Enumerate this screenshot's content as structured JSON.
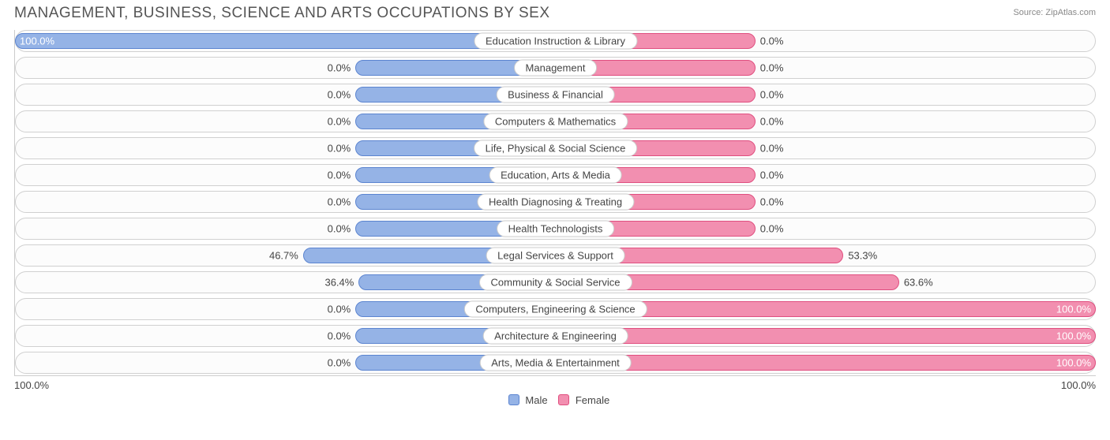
{
  "title": "MANAGEMENT, BUSINESS, SCIENCE AND ARTS OCCUPATIONS BY SEX",
  "source": "Source: ZipAtlas.com",
  "colors": {
    "male_fill": "#95b3e6",
    "male_border": "#5b84d0",
    "female_fill": "#f28fb0",
    "female_border": "#e04e7f",
    "text": "#444444",
    "row_border": "#d0d0d0",
    "row_bg": "#fcfcfc"
  },
  "legend": {
    "male": "Male",
    "female": "Female"
  },
  "axis": {
    "left": "100.0%",
    "right": "100.0%"
  },
  "neutral_bar_half_pct": 18.5,
  "rows": [
    {
      "label": "Education Instruction & Library",
      "male_pct": 100.0,
      "female_pct": 0.0,
      "male_label": "100.0%",
      "female_label": "0.0%"
    },
    {
      "label": "Management",
      "male_pct": 0.0,
      "female_pct": 0.0,
      "male_label": "0.0%",
      "female_label": "0.0%"
    },
    {
      "label": "Business & Financial",
      "male_pct": 0.0,
      "female_pct": 0.0,
      "male_label": "0.0%",
      "female_label": "0.0%"
    },
    {
      "label": "Computers & Mathematics",
      "male_pct": 0.0,
      "female_pct": 0.0,
      "male_label": "0.0%",
      "female_label": "0.0%"
    },
    {
      "label": "Life, Physical & Social Science",
      "male_pct": 0.0,
      "female_pct": 0.0,
      "male_label": "0.0%",
      "female_label": "0.0%"
    },
    {
      "label": "Education, Arts & Media",
      "male_pct": 0.0,
      "female_pct": 0.0,
      "male_label": "0.0%",
      "female_label": "0.0%"
    },
    {
      "label": "Health Diagnosing & Treating",
      "male_pct": 0.0,
      "female_pct": 0.0,
      "male_label": "0.0%",
      "female_label": "0.0%"
    },
    {
      "label": "Health Technologists",
      "male_pct": 0.0,
      "female_pct": 0.0,
      "male_label": "0.0%",
      "female_label": "0.0%"
    },
    {
      "label": "Legal Services & Support",
      "male_pct": 46.7,
      "female_pct": 53.3,
      "male_label": "46.7%",
      "female_label": "53.3%"
    },
    {
      "label": "Community & Social Service",
      "male_pct": 36.4,
      "female_pct": 63.6,
      "male_label": "36.4%",
      "female_label": "63.6%"
    },
    {
      "label": "Computers, Engineering & Science",
      "male_pct": 0.0,
      "female_pct": 100.0,
      "male_label": "0.0%",
      "female_label": "100.0%"
    },
    {
      "label": "Architecture & Engineering",
      "male_pct": 0.0,
      "female_pct": 100.0,
      "male_label": "0.0%",
      "female_label": "100.0%"
    },
    {
      "label": "Arts, Media & Entertainment",
      "male_pct": 0.0,
      "female_pct": 100.0,
      "male_label": "0.0%",
      "female_label": "100.0%"
    }
  ]
}
